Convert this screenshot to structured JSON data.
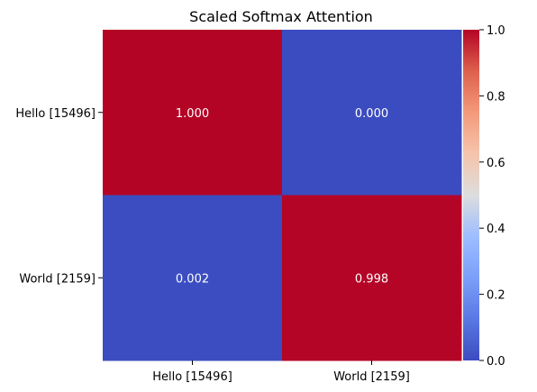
{
  "chart_data": {
    "type": "heatmap",
    "title": "Scaled Softmax Attention",
    "x_categories": [
      "Hello [15496]",
      "World [2159]"
    ],
    "y_categories": [
      "Hello [15496]",
      "World [2159]"
    ],
    "values": [
      [
        1.0,
        0.0
      ],
      [
        0.002,
        0.998
      ]
    ],
    "value_labels": [
      [
        "1.000",
        "0.000"
      ],
      [
        "0.002",
        "0.998"
      ]
    ],
    "colormap": "coolwarm",
    "colorbar": {
      "range": [
        0,
        1.0
      ],
      "ticks": [
        0.0,
        0.2,
        0.4,
        0.6,
        0.8,
        1.0
      ],
      "tick_labels": [
        "0.0",
        "0.2",
        "0.4",
        "0.6",
        "0.8",
        "1.0"
      ]
    },
    "colors": {
      "low": "#3b4cc0",
      "mid": "#dddddd",
      "high": "#b40426"
    },
    "grid": false,
    "legend": "colorbar-right"
  }
}
